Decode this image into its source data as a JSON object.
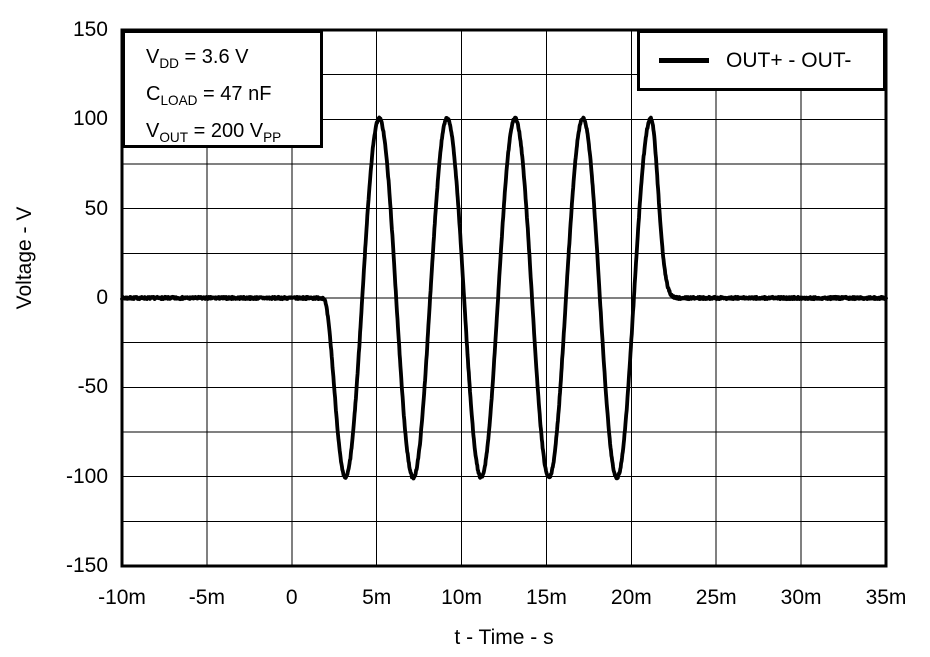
{
  "chart_data": {
    "type": "line",
    "title": "",
    "xlabel": "t - Time - s",
    "ylabel": "Voltage - V",
    "xlim_ms": [
      -10,
      35
    ],
    "ylim": [
      -150,
      150
    ],
    "grid": true,
    "background": "#ffffff",
    "line_color": "#000000",
    "grid_color": "#000000",
    "x_ticks": [
      {
        "v": -10,
        "label": "-10m"
      },
      {
        "v": -5,
        "label": "-5m"
      },
      {
        "v": 0,
        "label": "0"
      },
      {
        "v": 5,
        "label": "5m"
      },
      {
        "v": 10,
        "label": "10m"
      },
      {
        "v": 15,
        "label": "15m"
      },
      {
        "v": 20,
        "label": "20m"
      },
      {
        "v": 25,
        "label": "25m"
      },
      {
        "v": 30,
        "label": "30m"
      },
      {
        "v": 35,
        "label": "35m"
      }
    ],
    "y_ticks": [
      {
        "v": 150,
        "label": "150"
      },
      {
        "v": 100,
        "label": "100"
      },
      {
        "v": 50,
        "label": "50"
      },
      {
        "v": 0,
        "label": "0"
      },
      {
        "v": -50,
        "label": "-50"
      },
      {
        "v": -100,
        "label": "-100"
      },
      {
        "v": -150,
        "label": "-150"
      }
    ],
    "x_gridlines_ms": [
      -5,
      0,
      5,
      10,
      15,
      20,
      25,
      30
    ],
    "y_gridlines_v": [
      -125,
      -100,
      -75,
      -50,
      -25,
      0,
      25,
      50,
      75,
      100,
      125
    ],
    "legend": {
      "position": "top-right",
      "entries": [
        {
          "label": "OUT+ - OUT-"
        }
      ]
    },
    "conditions_box": {
      "lines": [
        [
          [
            "V",
            "DD"
          ],
          [
            " = 3.6 V",
            ""
          ]
        ],
        [
          [
            "C",
            "LOAD"
          ],
          [
            " = 47 nF",
            ""
          ]
        ],
        [
          [
            "V",
            "OUT"
          ],
          [
            " = 200 V",
            "PP"
          ]
        ]
      ]
    },
    "series": [
      {
        "name": "OUT+ - OUT-",
        "description": "0 V baseline, then a 5-cycle sine burst of ~100 V amplitude (200 Vpp), 4 ms period (250 Hz), negative half-cycle first, from ~2 ms to ~21 ms, then smooth decay back to 0 V by ~23 ms",
        "waveform": {
          "baseline_v": 0,
          "amplitude_v": 100.5,
          "period_ms": 4,
          "cycles": 5,
          "onset_ms": 1.85,
          "zero_cross_down_ms": 2.15,
          "first_trough_ms": 3.15,
          "last_peak_ms": 21.15,
          "decay_sigma_ms": 0.6,
          "settle_ms": 23,
          "noise_vpp": 1.4
        },
        "key_points": [
          {
            "t_ms": -10,
            "v": 0
          },
          {
            "t_ms": 1.9,
            "v": 0
          },
          {
            "t_ms": 3.15,
            "v": -100
          },
          {
            "t_ms": 5.15,
            "v": 100
          },
          {
            "t_ms": 7.15,
            "v": -100
          },
          {
            "t_ms": 9.15,
            "v": 100
          },
          {
            "t_ms": 11.15,
            "v": -100
          },
          {
            "t_ms": 13.15,
            "v": 100
          },
          {
            "t_ms": 15.15,
            "v": -100
          },
          {
            "t_ms": 17.15,
            "v": 100
          },
          {
            "t_ms": 19.15,
            "v": -100
          },
          {
            "t_ms": 21.15,
            "v": 100
          },
          {
            "t_ms": 23,
            "v": 0
          },
          {
            "t_ms": 35,
            "v": 0
          }
        ]
      }
    ]
  }
}
